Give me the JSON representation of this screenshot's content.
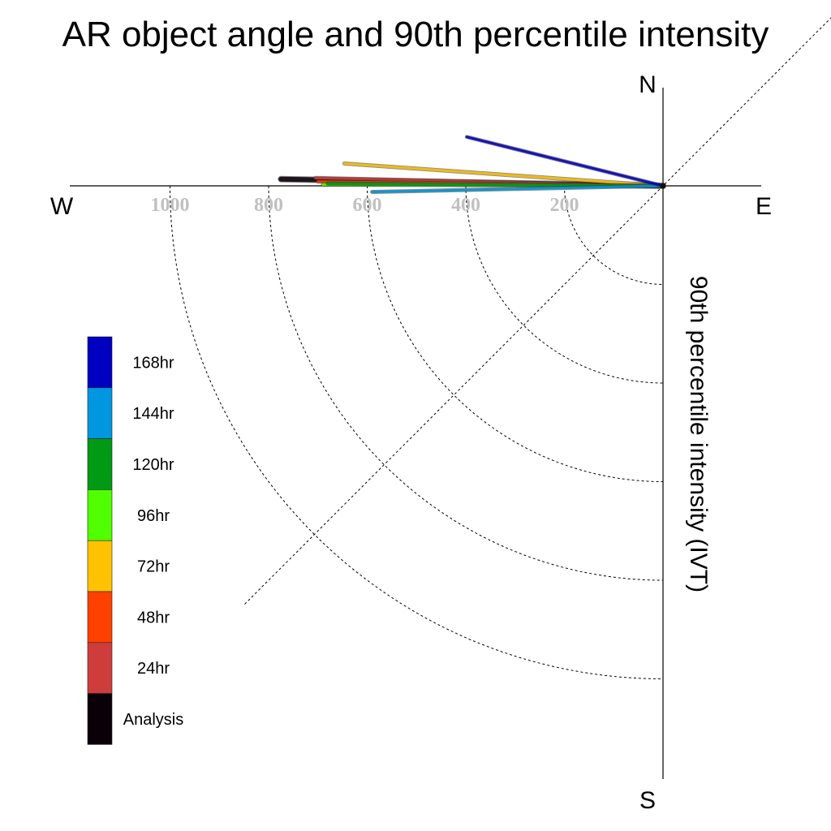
{
  "chart_data": {
    "type": "line",
    "title": "AR object angle and 90th percentile intensity",
    "ylabel": "90th percentile intensity (IVT)",
    "compass": {
      "north": "N",
      "south": "S",
      "east": "E",
      "west": "W"
    },
    "radial_ticks": [
      "1000",
      "800",
      "600",
      "400",
      "200"
    ],
    "radial_tick_values": [
      1000,
      800,
      600,
      400,
      200
    ],
    "radial_max": 1200,
    "grid": true,
    "legend_placement": "left",
    "legend": [
      {
        "label": "168hr",
        "color": "#0000c0"
      },
      {
        "label": "144hr",
        "color": "#0096e0"
      },
      {
        "label": "120hr",
        "color": "#009a14"
      },
      {
        "label": "96hr",
        "color": "#50ff00"
      },
      {
        "label": "72hr",
        "color": "#ffc200"
      },
      {
        "label": "48hr",
        "color": "#ff4100"
      },
      {
        "label": "24hr",
        "color": "#cf3c3c"
      },
      {
        "label": "Analysis",
        "color": "#0a0008"
      }
    ],
    "series": [
      {
        "name": "Analysis",
        "color": "#0a0008",
        "intensity": 775,
        "angle_deg": 179
      },
      {
        "name": "24hr",
        "color": "#cf3c3c",
        "intensity": 705,
        "angle_deg": 178.7
      },
      {
        "name": "48hr",
        "color": "#ff4100",
        "intensity": 700,
        "angle_deg": 179.3
      },
      {
        "name": "72hr",
        "color": "#ffc200",
        "intensity": 648,
        "angle_deg": 176
      },
      {
        "name": "96hr",
        "color": "#50ff00",
        "intensity": 690,
        "angle_deg": 179.8
      },
      {
        "name": "120hr",
        "color": "#009a14",
        "intensity": 680,
        "angle_deg": 179.6
      },
      {
        "name": "144hr",
        "color": "#0096e0",
        "intensity": 590,
        "angle_deg": 181.2
      },
      {
        "name": "168hr",
        "color": "#0000c0",
        "intensity": 410,
        "angle_deg": 166
      }
    ]
  }
}
